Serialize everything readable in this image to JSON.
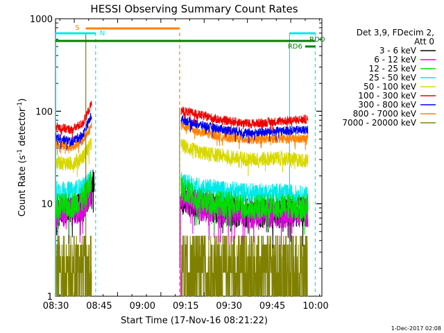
{
  "chart_data": {
    "type": "line",
    "title": "HESSI Observing Summary Count Rates",
    "xlabel": "Start Time (17-Nov-16 08:21:22)",
    "ylabel_main": "Count Rate (s",
    "ylabel_sup1": "-1",
    "ylabel_mid": " detector",
    "ylabel_sup2": "-1",
    "ylabel_end": ")",
    "x_range_minutes": [
      8.5,
      100.8
    ],
    "y_scale": "log",
    "ylim": [
      1,
      1000
    ],
    "x_ticks": [
      {
        "label": "08:30",
        "minute": 30
      },
      {
        "label": "08:45",
        "minute": 45
      },
      {
        "label": "09:00",
        "minute": 60
      },
      {
        "label": "09:15",
        "minute": 75
      },
      {
        "label": "09:30",
        "minute": 90
      },
      {
        "label": "09:45",
        "minute": 105
      },
      {
        "label": "10:00",
        "minute": 120
      }
    ],
    "y_ticks": [
      {
        "label": "1",
        "value": 1
      },
      {
        "label": "10",
        "value": 10
      },
      {
        "label": "100",
        "value": 100
      },
      {
        "label": "1000",
        "value": 1000
      }
    ],
    "legend_header": [
      "Det 3,9, FDecim 2,",
      "Att 0"
    ],
    "series": [
      {
        "name": "3 - 6 keV",
        "color": "#000000",
        "segments": [
          [
            [
              8.7,
              8.3
            ],
            [
              14,
              8.2
            ],
            [
              18,
              9.5
            ],
            [
              21,
              15
            ],
            [
              22,
              20
            ]
          ],
          [
            [
              52,
              11
            ],
            [
              58,
              9.5
            ],
            [
              66,
              8.5
            ],
            [
              76,
              7.8
            ],
            [
              86,
              7.9
            ],
            [
              96,
              8.2
            ]
          ]
        ]
      },
      {
        "name": "6 - 12 keV",
        "color": "#e000e0",
        "segments": [
          [
            [
              8.7,
              8.0
            ],
            [
              14,
              8.0
            ],
            [
              18,
              9.3
            ],
            [
              21,
              14
            ]
          ],
          [
            [
              52,
              12
            ],
            [
              58,
              9.3
            ],
            [
              66,
              8.5
            ],
            [
              76,
              7.7
            ],
            [
              86,
              7.8
            ],
            [
              96,
              8.0
            ]
          ]
        ]
      },
      {
        "name": "12 - 25 keV",
        "color": "#00dd00",
        "segments": [
          [
            [
              8.7,
              9.5
            ],
            [
              14,
              9.5
            ],
            [
              18,
              11
            ],
            [
              21,
              17
            ]
          ],
          [
            [
              52,
              15
            ],
            [
              58,
              11
            ],
            [
              66,
              10
            ],
            [
              76,
              9.2
            ],
            [
              86,
              9.3
            ],
            [
              96,
              9.4
            ]
          ]
        ]
      },
      {
        "name": "25 - 50 keV",
        "color": "#00e8e8",
        "segments": [
          [
            [
              8.7,
              14
            ],
            [
              14,
              13.5
            ],
            [
              18,
              15
            ],
            [
              21,
              19
            ]
          ],
          [
            [
              52,
              17
            ],
            [
              58,
              15
            ],
            [
              66,
              14
            ],
            [
              76,
              13
            ],
            [
              86,
              13
            ],
            [
              96,
              12
            ]
          ]
        ]
      },
      {
        "name": "50 - 100 keV",
        "color": "#d8d800",
        "segments": [
          [
            [
              8.7,
              28
            ],
            [
              14,
              27
            ],
            [
              18,
              32
            ],
            [
              21,
              45
            ]
          ],
          [
            [
              52,
              43
            ],
            [
              58,
              36
            ],
            [
              66,
              33
            ],
            [
              76,
              30
            ],
            [
              86,
              31
            ],
            [
              96,
              29
            ]
          ]
        ]
      },
      {
        "name": "100 - 300 keV",
        "color": "#ee0000",
        "segments": [
          [
            [
              8.7,
              68
            ],
            [
              14,
              63
            ],
            [
              18,
              74
            ],
            [
              21,
              120
            ]
          ],
          [
            [
              52,
              102
            ],
            [
              58,
              92
            ],
            [
              66,
              80
            ],
            [
              76,
              73
            ],
            [
              86,
              78
            ],
            [
              96,
              82
            ]
          ]
        ]
      },
      {
        "name": "300 - 800 keV",
        "color": "#0000ee",
        "segments": [
          [
            [
              8.7,
              52
            ],
            [
              14,
              47
            ],
            [
              18,
              56
            ],
            [
              21,
              90
            ]
          ],
          [
            [
              52,
              82
            ],
            [
              58,
              72
            ],
            [
              66,
              64
            ],
            [
              76,
              58
            ],
            [
              86,
              61
            ],
            [
              96,
              63
            ]
          ]
        ]
      },
      {
        "name": "800 - 7000 keV",
        "color": "#ff8000",
        "segments": [
          [
            [
              8.7,
              44
            ],
            [
              14,
              41
            ],
            [
              18,
              48
            ],
            [
              21,
              70
            ]
          ],
          [
            [
              52,
              70
            ],
            [
              58,
              60
            ],
            [
              66,
              53
            ],
            [
              76,
              49
            ],
            [
              86,
              51
            ],
            [
              96,
              50
            ]
          ]
        ]
      },
      {
        "name": "7000 - 20000 keV",
        "color": "#808000",
        "segments": [
          [
            [
              8.7,
              2.7
            ],
            [
              14,
              2.7
            ],
            [
              18,
              2.7
            ],
            [
              21,
              3.5
            ]
          ],
          [
            [
              52,
              2.8
            ],
            [
              66,
              2.6
            ],
            [
              76,
              2.8
            ],
            [
              86,
              2.8
            ],
            [
              96,
              2.7
            ]
          ]
        ]
      }
    ],
    "flags": [
      {
        "label": "S",
        "color": "#ff8000",
        "minute_start": 19,
        "minute_end": 51.5
      },
      {
        "label": "N",
        "color": "#00e8e8",
        "segments": [
          [
            8.5,
            22.4
          ],
          [
            89.6,
            98.5
          ]
        ]
      },
      {
        "label": "RDO",
        "color": "#008000",
        "minute_start": 8.5,
        "minute_end": 98.3
      },
      {
        "label": "RD6",
        "color": "#008000",
        "minute_start": 95,
        "minute_end": 98.5
      }
    ],
    "vlines": [
      {
        "minute": 8.6,
        "color": "#00e8e8",
        "style": "solid"
      },
      {
        "minute": 22.4,
        "color": "#00e8e8",
        "style": "dashed"
      },
      {
        "minute": 51.5,
        "color": "#ff8000",
        "style": "dashed"
      },
      {
        "minute": 89.6,
        "color": "#00e8e8",
        "style": "solid"
      },
      {
        "minute": 98.5,
        "color": "#00e8e8",
        "style": "dashed"
      }
    ],
    "footer_timestamp": "1-Dec-2017 02:08"
  }
}
